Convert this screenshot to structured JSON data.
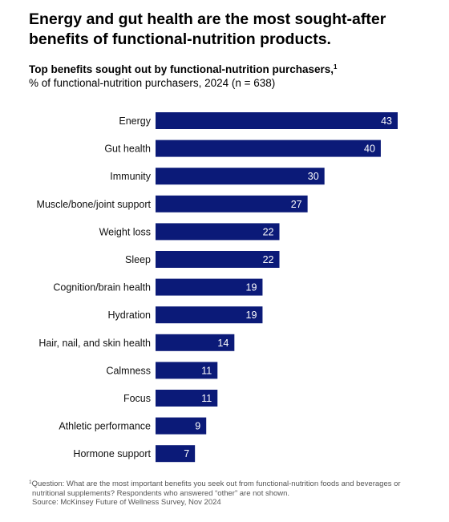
{
  "headline": "Energy and gut health are the most sought-after benefits of functional-nutrition products.",
  "chart_data": {
    "type": "bar",
    "orientation": "horizontal",
    "title": "Top benefits sought out by functional-nutrition purchasers,",
    "title_footnote_marker": "1",
    "subtitle": "% of functional-nutrition purchasers, 2024 (n = 638)",
    "categories": [
      "Energy",
      "Gut health",
      "Immunity",
      "Muscle/bone/joint support",
      "Weight loss",
      "Sleep",
      "Cognition/brain health",
      "Hydration",
      "Hair, nail, and skin health",
      "Calmness",
      "Focus",
      "Athletic performance",
      "Hormone support"
    ],
    "values": [
      43,
      40,
      30,
      27,
      22,
      22,
      19,
      19,
      14,
      11,
      11,
      9,
      7
    ],
    "data_labels": [
      "43",
      "40",
      "30",
      "27",
      "22",
      "22",
      "19",
      "19",
      "14",
      "11",
      "11",
      "9",
      "7"
    ],
    "xlim": [
      0,
      43
    ],
    "grid": false,
    "legend": "none",
    "bar_color": "#0b1a78",
    "label_color": "#ffffff"
  },
  "footnote": {
    "marker": "1",
    "lines": [
      "Question: What are the most important benefits you seek out from functional-nutrition foods and beverages or",
      "nutritional supplements? Respondents who answered “other” are not shown.",
      "Source: McKinsey Future of Wellness Survey, Nov 2024"
    ]
  }
}
